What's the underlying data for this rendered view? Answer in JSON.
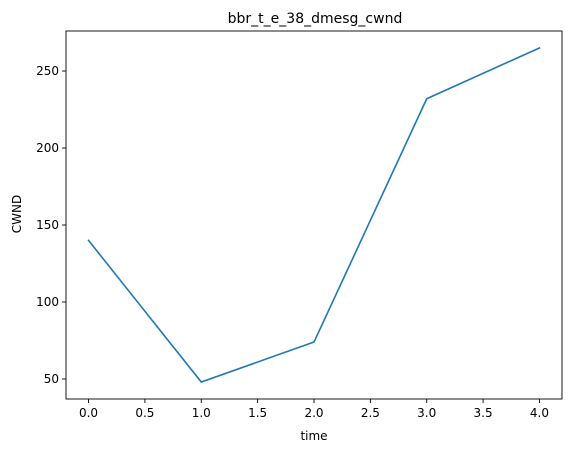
{
  "chart_data": {
    "type": "line",
    "title": "bbr_t_e_38_dmesg_cwnd",
    "xlabel": "time",
    "ylabel": "CWND",
    "xlim": [
      -0.2,
      4.2
    ],
    "ylim": [
      37,
      276
    ],
    "xticks": [
      0.0,
      0.5,
      1.0,
      1.5,
      2.0,
      2.5,
      3.0,
      3.5,
      4.0
    ],
    "xtick_labels": [
      "0.0",
      "0.5",
      "1.0",
      "1.5",
      "2.0",
      "2.5",
      "3.0",
      "3.5",
      "4.0"
    ],
    "yticks": [
      50,
      100,
      150,
      200,
      250
    ],
    "ytick_labels": [
      "50",
      "100",
      "150",
      "200",
      "250"
    ],
    "grid": false,
    "legend": false,
    "series": [
      {
        "color": "#1f77b4",
        "x": [
          0,
          1,
          2,
          3,
          4
        ],
        "y": [
          140,
          48,
          74,
          232,
          265
        ]
      }
    ]
  }
}
